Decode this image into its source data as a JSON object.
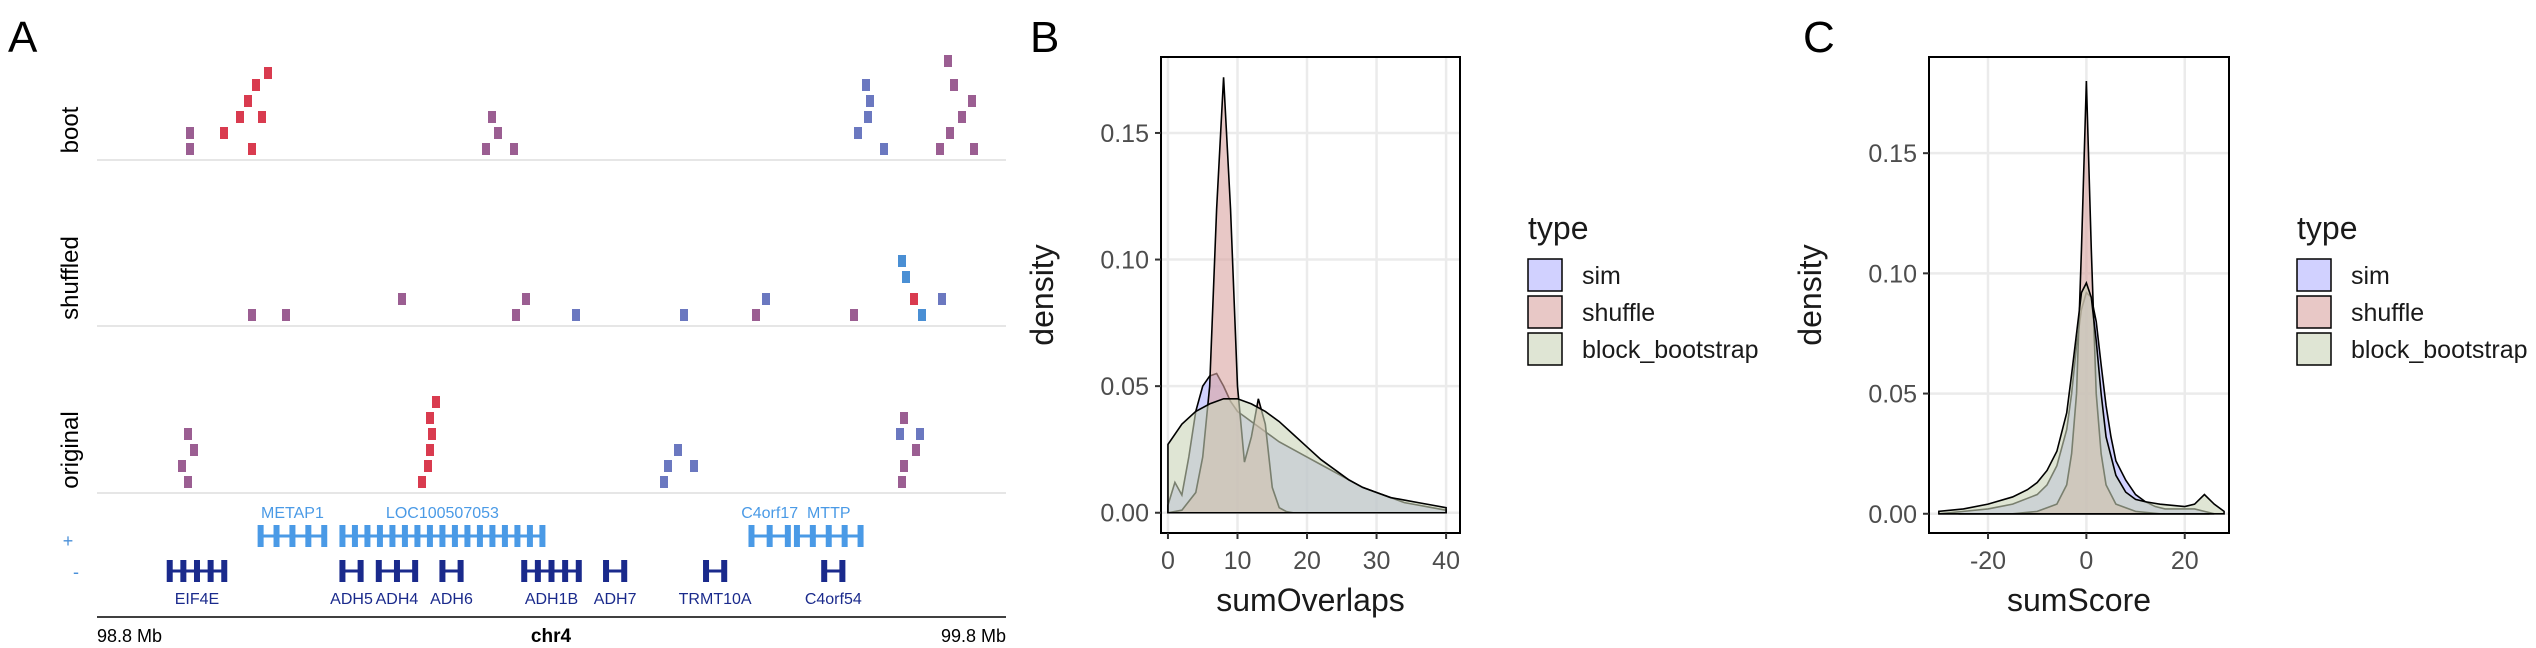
{
  "panel_letters": [
    "A",
    "B",
    "C"
  ],
  "colors": {
    "sim": "#b3b3ff",
    "shuffle": "#d9a3a0",
    "block_bootstrap": "#c9d3b8",
    "plus_strand": "#4a9ae6",
    "minus_strand": "#1a2a8c",
    "grid": "#ebebeb",
    "bar_red": "#d93b4f",
    "bar_purple": "#9b5e92",
    "bar_blue": "#6b78c0",
    "bar_lightblue": "#4a8fd4"
  },
  "panel_a": {
    "tracks": [
      "boot",
      "shuffled",
      "original"
    ],
    "strand_plus": "+",
    "strand_minus": "-",
    "genes_plus": [
      {
        "name": "METAP1",
        "start": 98.98,
        "end": 99.05
      },
      {
        "name": "LOC100507053",
        "start": 99.07,
        "end": 99.29
      },
      {
        "name": "C4orf17",
        "start": 99.52,
        "end": 99.56
      },
      {
        "name": "MTTP",
        "start": 99.57,
        "end": 99.64
      }
    ],
    "genes_minus": [
      {
        "name": "EIF4E",
        "start": 98.88,
        "end": 98.94
      },
      {
        "name": "ADH5",
        "start": 99.07,
        "end": 99.09
      },
      {
        "name": "ADH4",
        "start": 99.11,
        "end": 99.15
      },
      {
        "name": "ADH6",
        "start": 99.18,
        "end": 99.2
      },
      {
        "name": "ADH1B",
        "start": 99.27,
        "end": 99.33
      },
      {
        "name": "ADH7",
        "start": 99.36,
        "end": 99.38
      },
      {
        "name": "TRMT10A",
        "start": 99.47,
        "end": 99.49
      },
      {
        "name": "C4orf54",
        "start": 99.6,
        "end": 99.62
      }
    ],
    "x_start_label": "98.8 Mb",
    "x_end_label": "99.8 Mb",
    "chrom": "chr4"
  },
  "chart_data": [
    {
      "type": "area",
      "panel": "B",
      "xlabel": "sumOverlaps",
      "ylabel": "density",
      "xlim": [
        -1,
        42
      ],
      "ylim": [
        -0.008,
        0.18
      ],
      "xticks": [
        0,
        10,
        20,
        30,
        40
      ],
      "yticks": [
        0.0,
        0.05,
        0.1,
        0.15
      ],
      "ytick_labels": [
        "0.00",
        "0.05",
        "0.10",
        "0.15"
      ],
      "legend_title": "type",
      "legend_position": "right",
      "series": [
        {
          "name": "sim",
          "x": [
            0,
            1,
            2,
            3,
            4,
            5,
            6,
            7,
            8,
            9,
            10,
            11,
            12,
            13,
            14,
            15,
            16,
            18,
            20,
            22,
            24,
            26,
            28,
            30,
            32,
            34,
            36,
            38,
            40
          ],
          "values": [
            0.003,
            0.012,
            0.007,
            0.022,
            0.04,
            0.05,
            0.054,
            0.055,
            0.05,
            0.044,
            0.04,
            0.038,
            0.036,
            0.034,
            0.032,
            0.03,
            0.028,
            0.025,
            0.022,
            0.019,
            0.016,
            0.013,
            0.01,
            0.008,
            0.006,
            0.004,
            0.003,
            0.002,
            0.001
          ]
        },
        {
          "name": "shuffle",
          "x": [
            0,
            2,
            4,
            5,
            6,
            7,
            8,
            9,
            10,
            11,
            12,
            13,
            14,
            15,
            16,
            17,
            18,
            20,
            25,
            30,
            35,
            40
          ],
          "values": [
            0.0,
            0.001,
            0.008,
            0.022,
            0.05,
            0.12,
            0.172,
            0.12,
            0.05,
            0.02,
            0.03,
            0.045,
            0.035,
            0.01,
            0.002,
            0.0005,
            0.0,
            0.0,
            0.0,
            0.0,
            0.0,
            0.0
          ]
        },
        {
          "name": "block_bootstrap",
          "x": [
            0,
            2,
            4,
            6,
            8,
            10,
            12,
            14,
            16,
            18,
            20,
            22,
            24,
            26,
            28,
            30,
            32,
            34,
            36,
            38,
            40
          ],
          "values": [
            0.027,
            0.035,
            0.04,
            0.043,
            0.045,
            0.045,
            0.043,
            0.04,
            0.036,
            0.031,
            0.026,
            0.021,
            0.017,
            0.013,
            0.01,
            0.008,
            0.006,
            0.005,
            0.004,
            0.003,
            0.002
          ]
        }
      ]
    },
    {
      "type": "area",
      "panel": "C",
      "xlabel": "sumScore",
      "ylabel": "density",
      "xlim": [
        -32,
        29
      ],
      "ylim": [
        -0.008,
        0.19
      ],
      "xticks": [
        -20,
        0,
        20
      ],
      "yticks": [
        0.0,
        0.05,
        0.1,
        0.15
      ],
      "ytick_labels": [
        "0.00",
        "0.05",
        "0.10",
        "0.15"
      ],
      "legend_title": "type",
      "legend_position": "right",
      "series": [
        {
          "name": "sim",
          "x": [
            -30,
            -25,
            -20,
            -15,
            -10,
            -8,
            -6,
            -4,
            -3,
            -2,
            -1,
            0,
            1,
            2,
            3,
            4,
            5,
            6,
            8,
            10,
            12,
            14,
            16,
            18,
            20,
            22,
            24,
            26
          ],
          "values": [
            0.0,
            0.001,
            0.002,
            0.004,
            0.008,
            0.012,
            0.02,
            0.035,
            0.05,
            0.07,
            0.085,
            0.092,
            0.09,
            0.08,
            0.062,
            0.045,
            0.032,
            0.022,
            0.014,
            0.008,
            0.005,
            0.003,
            0.002,
            0.002,
            0.002,
            0.002,
            0.001,
            0.0
          ]
        },
        {
          "name": "shuffle",
          "x": [
            -26,
            -20,
            -15,
            -10,
            -6,
            -4,
            -3,
            -2,
            -1,
            0,
            1,
            2,
            3,
            4,
            6,
            10,
            15,
            20,
            25
          ],
          "values": [
            0.0,
            0.0,
            0.0,
            0.001,
            0.004,
            0.012,
            0.025,
            0.05,
            0.11,
            0.18,
            0.11,
            0.05,
            0.025,
            0.012,
            0.004,
            0.001,
            0.0,
            0.0,
            0.0
          ]
        },
        {
          "name": "block_bootstrap",
          "x": [
            -30,
            -25,
            -20,
            -15,
            -12,
            -10,
            -8,
            -6,
            -4,
            -3,
            -2,
            -1,
            0,
            1,
            2,
            3,
            4,
            6,
            8,
            10,
            12,
            15,
            20,
            22,
            24,
            26,
            28
          ],
          "values": [
            0.001,
            0.002,
            0.004,
            0.007,
            0.01,
            0.013,
            0.018,
            0.026,
            0.042,
            0.058,
            0.075,
            0.092,
            0.096,
            0.09,
            0.072,
            0.05,
            0.032,
            0.016,
            0.009,
            0.006,
            0.005,
            0.004,
            0.003,
            0.004,
            0.008,
            0.004,
            0.001
          ]
        }
      ]
    }
  ]
}
